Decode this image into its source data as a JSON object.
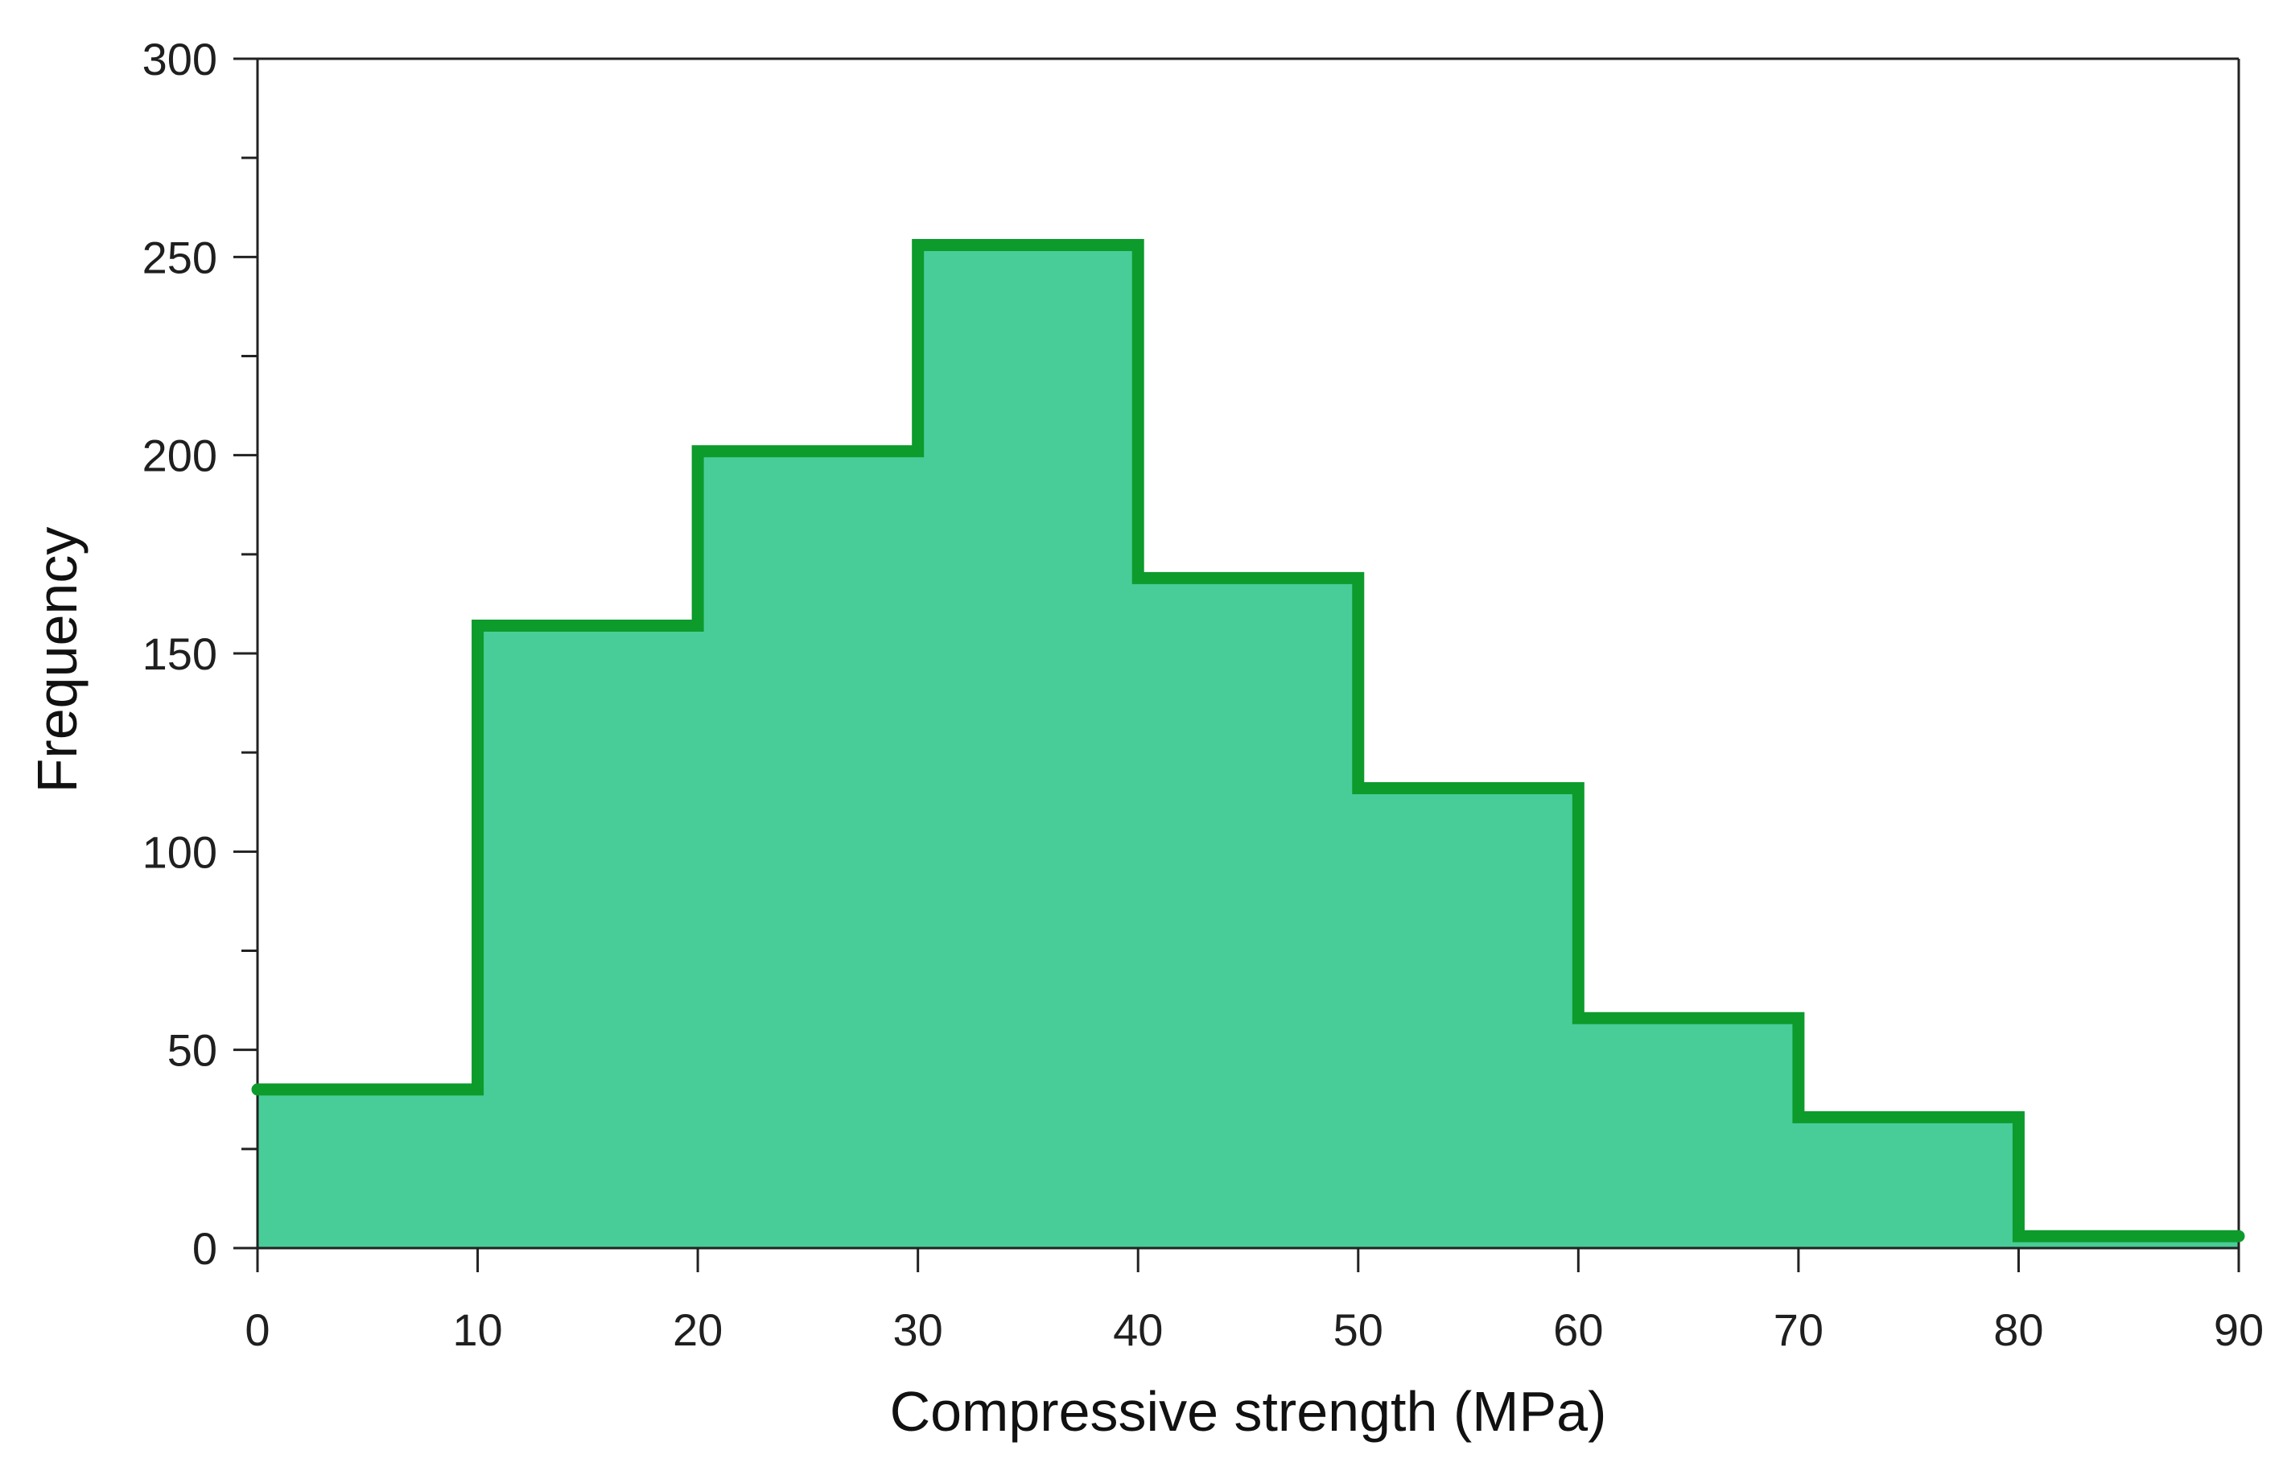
{
  "chart_data": {
    "type": "area",
    "subtype": "step-histogram",
    "title": "",
    "xlabel": "Compressive strength  (MPa)",
    "ylabel": "Frequency",
    "xlim": [
      0,
      90
    ],
    "ylim": [
      0,
      300
    ],
    "x_ticks": [
      0,
      10,
      20,
      30,
      40,
      50,
      60,
      70,
      80,
      90
    ],
    "y_ticks": [
      0,
      50,
      100,
      150,
      200,
      250,
      300
    ],
    "bins": [
      {
        "from": 0,
        "to": 10,
        "value": 40
      },
      {
        "from": 10,
        "to": 20,
        "value": 157
      },
      {
        "from": 20,
        "to": 30,
        "value": 201
      },
      {
        "from": 30,
        "to": 40,
        "value": 253
      },
      {
        "from": 40,
        "to": 50,
        "value": 169
      },
      {
        "from": 50,
        "to": 60,
        "value": 116
      },
      {
        "from": 60,
        "to": 70,
        "value": 58
      },
      {
        "from": 70,
        "to": 80,
        "value": 33
      },
      {
        "from": 80,
        "to": 90,
        "value": 3
      }
    ],
    "grid": false,
    "legend": "none",
    "colors": {
      "fill": "#48cd98",
      "outline": "#0d9b2c",
      "axis": "#222222"
    }
  }
}
